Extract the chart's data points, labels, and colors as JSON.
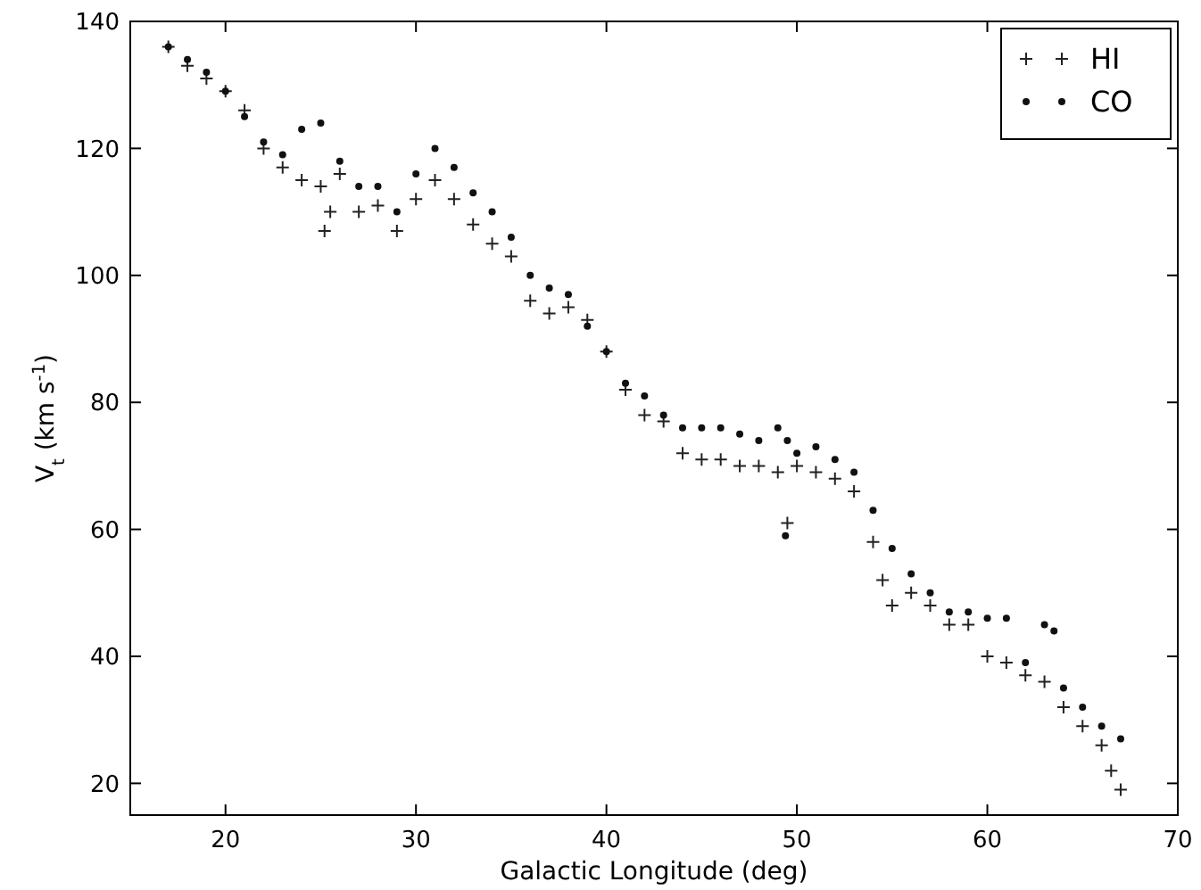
{
  "chart_data": {
    "type": "scatter",
    "xlabel": "Galactic Longitude (deg)",
    "ylabel": "V$_{t}$ (km s$^{-1}$)",
    "xlim": [
      15,
      70
    ],
    "ylim": [
      15,
      140
    ],
    "xticks": [
      20,
      30,
      40,
      50,
      60,
      70
    ],
    "yticks": [
      20,
      40,
      60,
      80,
      100,
      120,
      140
    ],
    "grid": false,
    "legend": "top right",
    "series": [
      {
        "name": "HI",
        "color": "#222222",
        "marker": "cross",
        "x": [
          17,
          18,
          19,
          20,
          21,
          22,
          23,
          24,
          25,
          25.2,
          25.5,
          26,
          27,
          28,
          29,
          30,
          31,
          32,
          33,
          34,
          35,
          36,
          37,
          38,
          39,
          40,
          41,
          42,
          43,
          44,
          45,
          46,
          47,
          48,
          49,
          49.5,
          50,
          51,
          52,
          53,
          54,
          54.5,
          55,
          56,
          57,
          58,
          59,
          60,
          61,
          62,
          63,
          64,
          65,
          66,
          66.5,
          67
        ],
        "values": [
          136,
          133,
          131,
          129,
          126,
          120,
          117,
          115,
          114,
          107,
          110,
          116,
          110,
          111,
          107,
          112,
          115,
          112,
          108,
          105,
          103,
          96,
          94,
          95,
          93,
          88,
          82,
          78,
          77,
          72,
          71,
          71,
          70,
          70,
          69,
          61,
          70,
          69,
          68,
          66,
          58,
          52,
          48,
          50,
          48,
          45,
          45,
          40,
          39,
          37,
          36,
          32,
          29,
          26,
          22,
          19
        ]
      },
      {
        "name": "CO",
        "color": "#111111",
        "marker": "circle",
        "x": [
          17,
          18,
          19,
          20,
          21,
          22,
          23,
          24,
          25,
          26,
          27,
          28,
          29,
          30,
          31,
          32,
          33,
          34,
          35,
          36,
          37,
          38,
          39,
          40,
          41,
          42,
          43,
          44,
          45,
          46,
          47,
          48,
          49,
          49.4,
          49.5,
          50,
          51,
          52,
          53,
          54,
          55,
          56,
          57,
          58,
          59,
          60,
          61,
          62,
          63,
          63.5,
          64,
          65,
          66,
          67
        ],
        "values": [
          136,
          134,
          132,
          129,
          125,
          121,
          119,
          123,
          124,
          118,
          114,
          114,
          110,
          116,
          120,
          117,
          113,
          110,
          106,
          100,
          98,
          97,
          92,
          88,
          83,
          81,
          78,
          76,
          76,
          76,
          75,
          74,
          76,
          59,
          74,
          72,
          73,
          71,
          69,
          63,
          57,
          53,
          50,
          47,
          47,
          46,
          46,
          39,
          45,
          44,
          35,
          32,
          29,
          27
        ]
      }
    ]
  }
}
